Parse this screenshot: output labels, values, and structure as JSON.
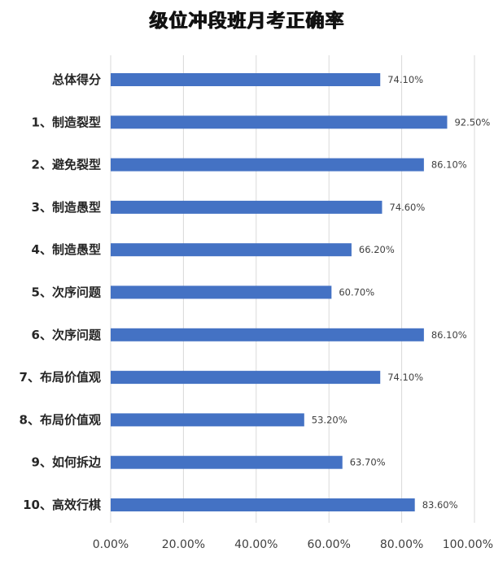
{
  "chart_data": {
    "type": "bar",
    "orientation": "horizontal",
    "title": "级位冲段班月考正确率",
    "categories": [
      "总体得分",
      "1、制造裂型",
      "2、避免裂型",
      "3、制造愚型",
      "4、制造愚型",
      "5、次序问题",
      "6、次序问题",
      "7、布局价值观",
      "8、布局价值观",
      "9、如何拆边",
      "10、高效行棋"
    ],
    "values": [
      74.1,
      92.5,
      86.1,
      74.6,
      66.2,
      60.7,
      86.1,
      74.1,
      53.2,
      63.7,
      83.6
    ],
    "data_labels": [
      "74.10%",
      "92.50%",
      "86.10%",
      "74.60%",
      "66.20%",
      "60.70%",
      "86.10%",
      "74.10%",
      "53.20%",
      "63.70%",
      "83.60%"
    ],
    "x_ticks": [
      "0.00%",
      "20.00%",
      "40.00%",
      "60.00%",
      "80.00%",
      "100.00%"
    ],
    "xlim": [
      0,
      100
    ],
    "xlabel": "",
    "ylabel": "",
    "grid": "vertical",
    "legend": "none",
    "bar_color": "#4472C4",
    "grid_color": "#d9d9d9"
  }
}
